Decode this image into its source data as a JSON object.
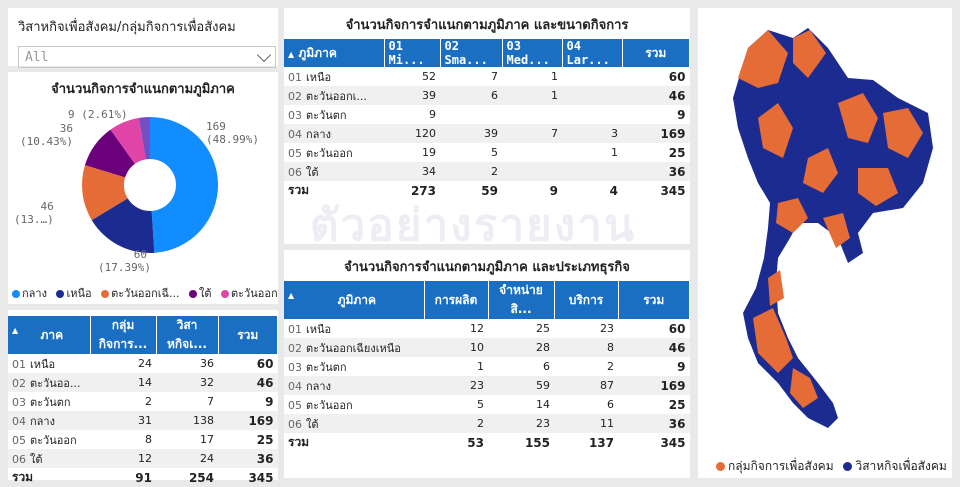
{
  "slicer": {
    "title": "วิสาหกิจเพื่อสังคม/กลุ่มกิจการเพื่อสังคม",
    "value": "All"
  },
  "donut": {
    "title": "จำนวนกิจการจำแนกตามภูมิภาค",
    "labels": [
      {
        "l1": "169",
        "l2": "(48.99%)"
      },
      {
        "l1": "60",
        "l2": "(17.39%)"
      },
      {
        "l1": "46",
        "l2": "(13.…)"
      },
      {
        "l1": "36",
        "l2": "(10.43%)"
      },
      {
        "l1": "9 (2.61%)",
        "l2": ""
      }
    ],
    "legend": [
      "กลาง",
      "เหนือ",
      "ตะวันออกเฉี...",
      "ใต้",
      "ตะวันออก"
    ]
  },
  "chart_data": {
    "type": "pie",
    "title": "จำนวนกิจการจำแนกตามภูมิภาค",
    "categories": [
      "กลาง",
      "เหนือ",
      "ตะวันออกเฉียงเหนือ",
      "ใต้",
      "ตะวันออก",
      "ตะวันตก"
    ],
    "values": [
      169,
      60,
      46,
      36,
      25,
      9
    ],
    "colors": [
      "#118dff",
      "#1c2b8f",
      "#e66c37",
      "#6b007b",
      "#e044a7",
      "#744ec2"
    ]
  },
  "tbl_size": {
    "title": "จำนวนกิจการจำแนกตามภูมิภาค  และขนาดกิจการ",
    "headers": [
      "ภูมิภาค",
      "01 Mi...",
      "02 Sma...",
      "03 Med...",
      "04 Lar...",
      "รวม"
    ],
    "rows": [
      [
        "01",
        "เหนือ",
        "52",
        "7",
        "1",
        "",
        "60"
      ],
      [
        "02",
        "ตะวันออกเ...",
        "39",
        "6",
        "1",
        "",
        "46"
      ],
      [
        "03",
        "ตะวันตก",
        "9",
        "",
        "",
        "",
        "9"
      ],
      [
        "04",
        "กลาง",
        "120",
        "39",
        "7",
        "3",
        "169"
      ],
      [
        "05",
        "ตะวันออก",
        "19",
        "5",
        "",
        "1",
        "25"
      ],
      [
        "06",
        "ใต้",
        "34",
        "2",
        "",
        "",
        "36"
      ]
    ],
    "total": [
      "รวม",
      "273",
      "59",
      "9",
      "4",
      "345"
    ]
  },
  "tbl_type": {
    "title": "จำนวนกิจการจำแนกตามภูมิภาค  และประเภทธุรกิจ",
    "headers": [
      "ภูมิภาค",
      "การผลิต",
      "จำหน่ายสิ...",
      "บริการ",
      "รวม"
    ],
    "rows": [
      [
        "01",
        "เหนือ",
        "12",
        "25",
        "23",
        "60"
      ],
      [
        "02",
        "ตะวันออกเฉียงเหนือ",
        "10",
        "28",
        "8",
        "46"
      ],
      [
        "03",
        "ตะวันตก",
        "1",
        "6",
        "2",
        "9"
      ],
      [
        "04",
        "กลาง",
        "23",
        "59",
        "87",
        "169"
      ],
      [
        "05",
        "ตะวันออก",
        "5",
        "14",
        "6",
        "25"
      ],
      [
        "06",
        "ใต้",
        "2",
        "23",
        "11",
        "36"
      ]
    ],
    "total": [
      "รวม",
      "53",
      "155",
      "137",
      "345"
    ]
  },
  "tbl_kind": {
    "headers": [
      "ภาค",
      "กลุ่มกิจการ...",
      "วิสาหกิจเ...",
      "รวม"
    ],
    "rows": [
      [
        "01",
        "เหนือ",
        "24",
        "36",
        "60"
      ],
      [
        "02",
        "ตะวันออ...",
        "14",
        "32",
        "46"
      ],
      [
        "03",
        "ตะวันตก",
        "2",
        "7",
        "9"
      ],
      [
        "04",
        "กลาง",
        "31",
        "138",
        "169"
      ],
      [
        "05",
        "ตะวันออก",
        "8",
        "17",
        "25"
      ],
      [
        "06",
        "ใต้",
        "12",
        "24",
        "36"
      ]
    ],
    "total": [
      "รวม",
      "91",
      "254",
      "345"
    ]
  },
  "watermark": "ตัวอย่างรายงาน",
  "map": {
    "legend": [
      "กลุ่มกิจการเพื่อสังคม",
      "วิสาหกิจเพื่อสังคม"
    ],
    "colors": [
      "#e66c37",
      "#1c2b8f"
    ]
  }
}
